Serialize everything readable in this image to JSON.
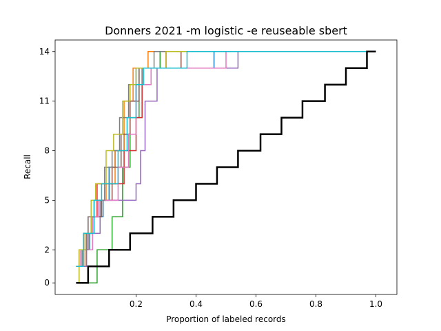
{
  "chart_data": {
    "type": "line",
    "title": "Donners 2021 -m logistic -e reuseable sbert",
    "xlabel": "Proportion of labeled records",
    "ylabel": "Recall",
    "xlim": [
      -0.07,
      1.07
    ],
    "ylim": [
      -0.7,
      14.7
    ],
    "x_ticks": [
      0.2,
      0.4,
      0.6,
      0.8,
      1.0
    ],
    "x_tick_labels": [
      "0.2",
      "0.4",
      "0.6",
      "0.8",
      "1.0"
    ],
    "y_ticks": [
      0,
      2,
      5,
      8,
      11,
      14
    ],
    "y_tick_labels": [
      "0",
      "2",
      "5",
      "8",
      "11",
      "14"
    ],
    "grid": false,
    "legend": "none",
    "series": [
      {
        "color": "#1f77b4",
        "width": 1.5,
        "points": [
          [
            0.0,
            1
          ],
          [
            0.02,
            1
          ],
          [
            0.02,
            2
          ],
          [
            0.045,
            2
          ],
          [
            0.045,
            3
          ],
          [
            0.055,
            3
          ],
          [
            0.055,
            4
          ],
          [
            0.09,
            4
          ],
          [
            0.09,
            5
          ],
          [
            0.11,
            5
          ],
          [
            0.11,
            7
          ],
          [
            0.13,
            7
          ],
          [
            0.13,
            8
          ],
          [
            0.16,
            8
          ],
          [
            0.16,
            9
          ],
          [
            0.18,
            9
          ],
          [
            0.18,
            11
          ],
          [
            0.2,
            11
          ],
          [
            0.2,
            13
          ],
          [
            0.46,
            13
          ],
          [
            0.46,
            14
          ],
          [
            0.97,
            14
          ]
        ]
      },
      {
        "color": "#ff7f0e",
        "width": 1.5,
        "points": [
          [
            0.0,
            1
          ],
          [
            0.03,
            1
          ],
          [
            0.03,
            3
          ],
          [
            0.06,
            3
          ],
          [
            0.06,
            5
          ],
          [
            0.1,
            5
          ],
          [
            0.1,
            6
          ],
          [
            0.13,
            6
          ],
          [
            0.13,
            8
          ],
          [
            0.16,
            8
          ],
          [
            0.16,
            11
          ],
          [
            0.19,
            11
          ],
          [
            0.19,
            13
          ],
          [
            0.24,
            13
          ],
          [
            0.24,
            14
          ],
          [
            0.97,
            14
          ]
        ]
      },
      {
        "color": "#2ca02c",
        "width": 1.5,
        "points": [
          [
            0.0,
            0
          ],
          [
            0.07,
            0
          ],
          [
            0.07,
            2
          ],
          [
            0.12,
            2
          ],
          [
            0.12,
            4
          ],
          [
            0.155,
            4
          ],
          [
            0.155,
            7
          ],
          [
            0.18,
            7
          ],
          [
            0.18,
            10
          ],
          [
            0.21,
            10
          ],
          [
            0.21,
            13
          ],
          [
            0.28,
            13
          ],
          [
            0.28,
            14
          ],
          [
            0.97,
            14
          ]
        ]
      },
      {
        "color": "#d62728",
        "width": 1.5,
        "points": [
          [
            0.0,
            1
          ],
          [
            0.01,
            1
          ],
          [
            0.01,
            2
          ],
          [
            0.04,
            2
          ],
          [
            0.04,
            4
          ],
          [
            0.07,
            4
          ],
          [
            0.07,
            6
          ],
          [
            0.16,
            6
          ],
          [
            0.16,
            8
          ],
          [
            0.2,
            8
          ],
          [
            0.2,
            10
          ],
          [
            0.22,
            10
          ],
          [
            0.22,
            13
          ],
          [
            0.3,
            13
          ],
          [
            0.3,
            14
          ],
          [
            0.97,
            14
          ]
        ]
      },
      {
        "color": "#9467bd",
        "width": 1.5,
        "points": [
          [
            0.0,
            1
          ],
          [
            0.035,
            1
          ],
          [
            0.035,
            3
          ],
          [
            0.08,
            3
          ],
          [
            0.08,
            5
          ],
          [
            0.2,
            5
          ],
          [
            0.2,
            6
          ],
          [
            0.215,
            6
          ],
          [
            0.215,
            8
          ],
          [
            0.23,
            8
          ],
          [
            0.23,
            11
          ],
          [
            0.27,
            11
          ],
          [
            0.27,
            13
          ],
          [
            0.54,
            13
          ],
          [
            0.54,
            14
          ],
          [
            0.97,
            14
          ]
        ]
      },
      {
        "color": "#8c564b",
        "width": 1.5,
        "points": [
          [
            0.0,
            1
          ],
          [
            0.025,
            1
          ],
          [
            0.025,
            3
          ],
          [
            0.05,
            3
          ],
          [
            0.05,
            4
          ],
          [
            0.085,
            4
          ],
          [
            0.085,
            5
          ],
          [
            0.12,
            5
          ],
          [
            0.12,
            7
          ],
          [
            0.15,
            7
          ],
          [
            0.15,
            9
          ],
          [
            0.18,
            9
          ],
          [
            0.18,
            11
          ],
          [
            0.21,
            11
          ],
          [
            0.21,
            13
          ],
          [
            0.35,
            13
          ],
          [
            0.35,
            14
          ],
          [
            0.97,
            14
          ]
        ]
      },
      {
        "color": "#e377c2",
        "width": 1.5,
        "points": [
          [
            0.0,
            1
          ],
          [
            0.015,
            1
          ],
          [
            0.015,
            2
          ],
          [
            0.055,
            2
          ],
          [
            0.055,
            4
          ],
          [
            0.075,
            4
          ],
          [
            0.075,
            5
          ],
          [
            0.14,
            5
          ],
          [
            0.14,
            7
          ],
          [
            0.175,
            7
          ],
          [
            0.175,
            9
          ],
          [
            0.2,
            9
          ],
          [
            0.2,
            12
          ],
          [
            0.25,
            12
          ],
          [
            0.25,
            13
          ],
          [
            0.5,
            13
          ],
          [
            0.5,
            14
          ],
          [
            0.97,
            14
          ]
        ]
      },
      {
        "color": "#7f7f7f",
        "width": 1.5,
        "points": [
          [
            0.0,
            1
          ],
          [
            0.02,
            1
          ],
          [
            0.02,
            2
          ],
          [
            0.04,
            2
          ],
          [
            0.04,
            4
          ],
          [
            0.06,
            4
          ],
          [
            0.06,
            5
          ],
          [
            0.095,
            5
          ],
          [
            0.095,
            7
          ],
          [
            0.12,
            7
          ],
          [
            0.12,
            8
          ],
          [
            0.145,
            8
          ],
          [
            0.145,
            10
          ],
          [
            0.175,
            10
          ],
          [
            0.175,
            12
          ],
          [
            0.22,
            12
          ],
          [
            0.22,
            13
          ],
          [
            0.26,
            13
          ],
          [
            0.26,
            14
          ],
          [
            0.97,
            14
          ]
        ]
      },
      {
        "color": "#bcbd22",
        "width": 1.5,
        "points": [
          [
            0.0,
            0
          ],
          [
            0.01,
            0
          ],
          [
            0.01,
            2
          ],
          [
            0.03,
            2
          ],
          [
            0.03,
            3
          ],
          [
            0.05,
            3
          ],
          [
            0.05,
            5
          ],
          [
            0.065,
            5
          ],
          [
            0.065,
            6
          ],
          [
            0.1,
            6
          ],
          [
            0.1,
            8
          ],
          [
            0.125,
            8
          ],
          [
            0.125,
            9
          ],
          [
            0.155,
            9
          ],
          [
            0.155,
            11
          ],
          [
            0.18,
            11
          ],
          [
            0.18,
            12
          ],
          [
            0.2,
            12
          ],
          [
            0.2,
            13
          ],
          [
            0.3,
            13
          ],
          [
            0.3,
            14
          ],
          [
            0.97,
            14
          ]
        ]
      },
      {
        "color": "#17becf",
        "width": 1.5,
        "points": [
          [
            0.0,
            1
          ],
          [
            0.025,
            1
          ],
          [
            0.025,
            3
          ],
          [
            0.06,
            3
          ],
          [
            0.06,
            5
          ],
          [
            0.085,
            5
          ],
          [
            0.085,
            6
          ],
          [
            0.14,
            6
          ],
          [
            0.14,
            8
          ],
          [
            0.17,
            8
          ],
          [
            0.17,
            10
          ],
          [
            0.2,
            10
          ],
          [
            0.2,
            12
          ],
          [
            0.225,
            12
          ],
          [
            0.225,
            13
          ],
          [
            0.37,
            13
          ],
          [
            0.37,
            14
          ],
          [
            0.97,
            14
          ]
        ]
      },
      {
        "color": "#000000",
        "width": 2.5,
        "points": [
          [
            0.0,
            0
          ],
          [
            0.04,
            0
          ],
          [
            0.04,
            1
          ],
          [
            0.11,
            1
          ],
          [
            0.11,
            2
          ],
          [
            0.18,
            2
          ],
          [
            0.18,
            3
          ],
          [
            0.255,
            3
          ],
          [
            0.255,
            4
          ],
          [
            0.325,
            4
          ],
          [
            0.325,
            5
          ],
          [
            0.4,
            5
          ],
          [
            0.4,
            6
          ],
          [
            0.47,
            6
          ],
          [
            0.47,
            7
          ],
          [
            0.54,
            7
          ],
          [
            0.54,
            8
          ],
          [
            0.615,
            8
          ],
          [
            0.615,
            9
          ],
          [
            0.685,
            9
          ],
          [
            0.685,
            10
          ],
          [
            0.755,
            10
          ],
          [
            0.755,
            11
          ],
          [
            0.83,
            11
          ],
          [
            0.83,
            12
          ],
          [
            0.9,
            12
          ],
          [
            0.9,
            13
          ],
          [
            0.97,
            13
          ],
          [
            0.97,
            14
          ],
          [
            1.0,
            14
          ]
        ]
      }
    ]
  }
}
